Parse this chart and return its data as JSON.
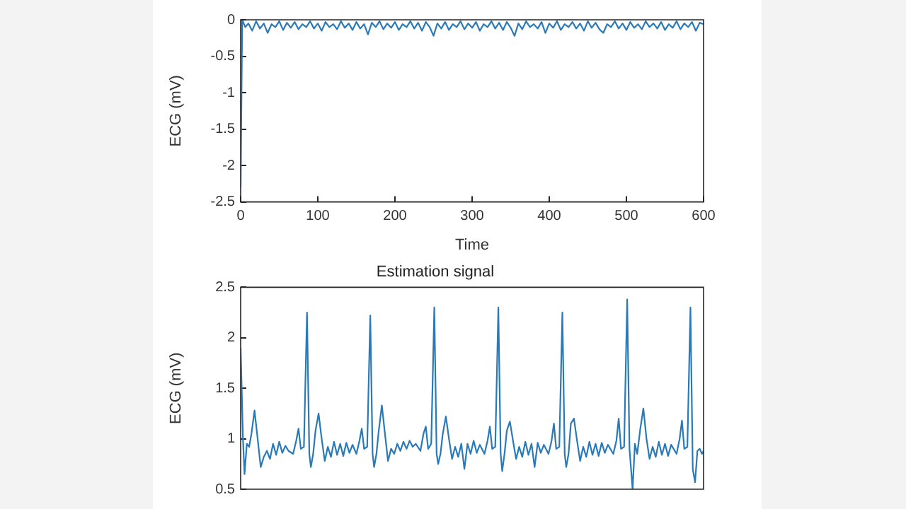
{
  "chart_data": [
    {
      "type": "line",
      "xlabel": "Time",
      "ylabel": "ECG (mV)",
      "xlim": [
        0,
        600
      ],
      "xticks": [
        0,
        100,
        200,
        300,
        400,
        500,
        600
      ],
      "ylim": [
        -2.5,
        0
      ],
      "yticks": [
        -2.5,
        -2,
        -1.5,
        -1,
        -0.5,
        0
      ],
      "series": [
        {
          "color": "#2a7ab8",
          "x": [
            0,
            2,
            6,
            10,
            15,
            20,
            25,
            30,
            35,
            40,
            45,
            50,
            55,
            60,
            65,
            70,
            75,
            80,
            85,
            90,
            95,
            100,
            105,
            110,
            115,
            120,
            125,
            130,
            135,
            140,
            145,
            150,
            155,
            160,
            165,
            170,
            175,
            180,
            185,
            190,
            195,
            200,
            205,
            210,
            215,
            220,
            225,
            230,
            235,
            240,
            245,
            250,
            255,
            260,
            265,
            270,
            275,
            280,
            285,
            290,
            295,
            300,
            305,
            310,
            315,
            320,
            325,
            330,
            335,
            340,
            345,
            350,
            355,
            360,
            365,
            370,
            375,
            380,
            385,
            390,
            395,
            400,
            405,
            410,
            415,
            420,
            425,
            430,
            435,
            440,
            445,
            450,
            455,
            460,
            465,
            470,
            475,
            480,
            485,
            490,
            495,
            500,
            505,
            510,
            515,
            520,
            525,
            530,
            535,
            540,
            545,
            550,
            555,
            560,
            565,
            570,
            575,
            580,
            585,
            590,
            595,
            600
          ],
          "values": [
            -2.3,
            0,
            -0.1,
            -0.05,
            -0.15,
            -0.02,
            -0.12,
            -0.05,
            -0.18,
            -0.06,
            -0.1,
            -0.02,
            -0.14,
            -0.04,
            -0.11,
            -0.03,
            -0.13,
            -0.06,
            -0.1,
            -0.02,
            -0.12,
            -0.05,
            -0.15,
            -0.03,
            -0.1,
            -0.06,
            -0.13,
            -0.02,
            -0.11,
            -0.05,
            -0.14,
            -0.03,
            -0.12,
            -0.06,
            -0.2,
            -0.04,
            -0.1,
            -0.02,
            -0.13,
            -0.05,
            -0.11,
            -0.03,
            -0.14,
            -0.06,
            -0.1,
            -0.02,
            -0.12,
            -0.04,
            -0.15,
            -0.03,
            -0.1,
            -0.22,
            -0.05,
            -0.12,
            -0.03,
            -0.14,
            -0.06,
            -0.1,
            -0.02,
            -0.13,
            -0.05,
            -0.11,
            -0.03,
            -0.15,
            -0.06,
            -0.1,
            -0.02,
            -0.12,
            -0.04,
            -0.14,
            -0.03,
            -0.11,
            -0.22,
            -0.05,
            -0.13,
            -0.02,
            -0.1,
            -0.06,
            -0.12,
            -0.03,
            -0.18,
            -0.05,
            -0.11,
            -0.02,
            -0.14,
            -0.06,
            -0.1,
            -0.03,
            -0.12,
            -0.05,
            -0.15,
            -0.02,
            -0.11,
            -0.04,
            -0.13,
            -0.18,
            -0.06,
            -0.1,
            -0.02,
            -0.12,
            -0.05,
            -0.14,
            -0.03,
            -0.11,
            -0.06,
            -0.13,
            -0.02,
            -0.1,
            -0.05,
            -0.12,
            -0.03,
            -0.14,
            -0.06,
            -0.11,
            -0.02,
            -0.13,
            -0.05,
            -0.1,
            -0.03,
            -0.15,
            -0.04,
            -0.06
          ]
        }
      ]
    },
    {
      "type": "line",
      "title": "Estimation signal",
      "ylabel": "ECG (mV)",
      "xlim": [
        0,
        600
      ],
      "ylim": [
        0.5,
        2.5
      ],
      "yticks": [
        0.5,
        1,
        1.5,
        2,
        2.5
      ],
      "tick_labels": "y",
      "series": [
        {
          "color": "#2a7ab8",
          "x": [
            0,
            3,
            5,
            8,
            11,
            14,
            18,
            22,
            26,
            30,
            34,
            38,
            42,
            46,
            50,
            54,
            58,
            62,
            68,
            72,
            75,
            78,
            82,
            86,
            89,
            91,
            94,
            97,
            101,
            105,
            109,
            113,
            117,
            121,
            125,
            129,
            133,
            137,
            141,
            145,
            150,
            154,
            157,
            160,
            164,
            168,
            171,
            173,
            176,
            179,
            183,
            187,
            191,
            195,
            199,
            203,
            207,
            211,
            215,
            219,
            223,
            227,
            233,
            237,
            240,
            243,
            247,
            251,
            254,
            256,
            259,
            262,
            266,
            270,
            274,
            278,
            282,
            286,
            290,
            294,
            298,
            302,
            306,
            310,
            316,
            320,
            323,
            326,
            330,
            334,
            337,
            339,
            342,
            345,
            349,
            353,
            357,
            361,
            365,
            369,
            373,
            377,
            381,
            385,
            389,
            393,
            399,
            403,
            406,
            409,
            413,
            417,
            420,
            422,
            425,
            428,
            432,
            436,
            440,
            444,
            448,
            452,
            456,
            460,
            464,
            468,
            472,
            476,
            483,
            487,
            490,
            493,
            497,
            501,
            504,
            508,
            511,
            514,
            518,
            522,
            526,
            530,
            534,
            538,
            542,
            546,
            550,
            554,
            558,
            565,
            569,
            572,
            575,
            579,
            583,
            586,
            589,
            592,
            595,
            598,
            600
          ],
          "values": [
            1.9,
            1.0,
            0.65,
            0.95,
            0.92,
            1.05,
            1.28,
            1.0,
            0.72,
            0.82,
            0.88,
            0.8,
            0.95,
            0.84,
            0.97,
            0.86,
            0.93,
            0.88,
            0.85,
            0.98,
            1.1,
            0.9,
            0.92,
            2.25,
            0.85,
            0.72,
            0.85,
            1.08,
            1.25,
            1.0,
            0.78,
            0.92,
            0.82,
            0.97,
            0.84,
            0.95,
            0.83,
            0.96,
            0.86,
            0.94,
            0.85,
            0.98,
            1.1,
            0.9,
            0.92,
            2.22,
            0.85,
            0.72,
            0.85,
            1.08,
            1.33,
            1.05,
            0.78,
            0.9,
            0.85,
            0.95,
            0.88,
            0.97,
            0.9,
            0.98,
            0.92,
            0.95,
            0.88,
            1.05,
            1.12,
            0.9,
            0.95,
            2.3,
            0.85,
            0.75,
            0.85,
            1.05,
            1.22,
            1.0,
            0.8,
            0.92,
            0.82,
            0.95,
            0.7,
            0.95,
            0.85,
            0.98,
            0.86,
            0.94,
            0.85,
            0.98,
            1.12,
            0.9,
            0.92,
            2.3,
            0.85,
            0.68,
            0.85,
            1.08,
            1.17,
            0.98,
            0.8,
            0.92,
            0.82,
            0.97,
            0.84,
            0.95,
            0.72,
            0.96,
            0.86,
            0.94,
            0.85,
            0.98,
            1.15,
            0.9,
            0.92,
            2.25,
            0.85,
            0.72,
            0.85,
            1.15,
            1.2,
            0.98,
            0.78,
            0.92,
            0.82,
            0.97,
            0.84,
            0.95,
            0.83,
            0.96,
            0.86,
            0.94,
            0.85,
            0.98,
            1.2,
            0.9,
            0.92,
            2.38,
            0.9,
            0.5,
            0.95,
            0.85,
            1.1,
            1.3,
            1.0,
            0.8,
            0.92,
            0.82,
            0.97,
            0.84,
            0.95,
            0.83,
            0.94,
            0.85,
            1.0,
            1.18,
            0.9,
            0.92,
            2.3,
            0.7,
            0.57,
            0.88,
            0.9,
            0.85,
            0.88
          ]
        }
      ]
    }
  ]
}
